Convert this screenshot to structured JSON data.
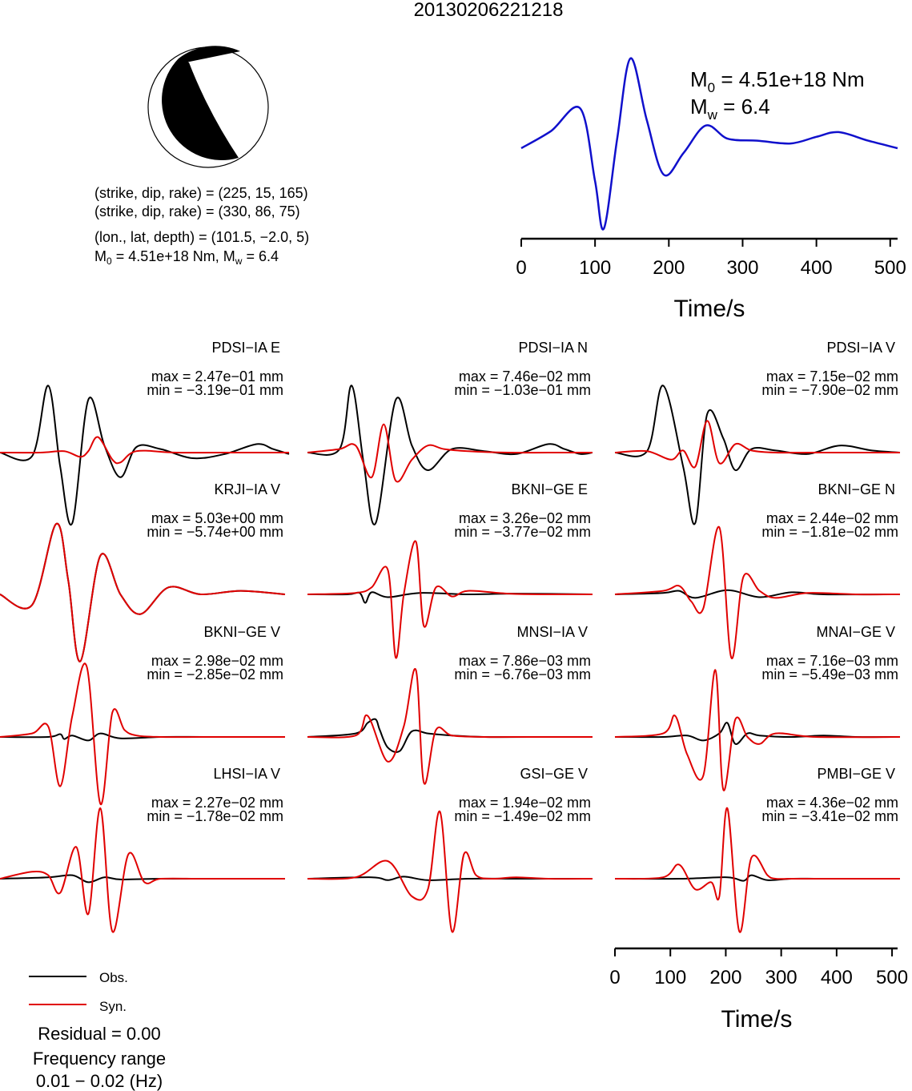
{
  "title": "20130206221218",
  "mechanism": {
    "line1": "(strike, dip, rake) = (225, 15, 165)",
    "line2": "(strike, dip, rake) = (330, 86, 75)",
    "line3": "(lon., lat, depth) = (101.5, −2.0, 5)",
    "m0_prefix": "M",
    "m0_sub": "0",
    "m0_value": " = 4.51e+18 Nm, M",
    "mw_sub": "w",
    "mw_value": " = 6.4"
  },
  "stf": {
    "m0_label": "M",
    "m0_sub": "0",
    "m0_value": " = 4.51e+18 Nm",
    "mw_label": "M",
    "mw_sub": "w",
    "mw_value": " = 6.4",
    "xlabel": "Time/s"
  },
  "legend": {
    "obs": "Obs.",
    "syn": "Syn.",
    "residual": "Residual = 0.00",
    "freq_title": "Frequency range",
    "freq_value": "0.01 − 0.02 (Hz)"
  },
  "colors": {
    "observed": "#000000",
    "synthetic": "#e00000",
    "stf": "#1010cc",
    "beachball_fill": "#000000"
  },
  "chart_data": [
    {
      "type": "line",
      "name": "source-time-function",
      "xlabel": "Time/s",
      "xlim": [
        0,
        510
      ],
      "x_ticks": [
        0,
        100,
        200,
        300,
        400,
        500
      ],
      "x": [
        0,
        40,
        80,
        100,
        112,
        130,
        148,
        170,
        193,
        220,
        250,
        280,
        320,
        365,
        400,
        430,
        470,
        510
      ],
      "y": [
        0.0,
        0.18,
        0.42,
        -0.35,
        -0.85,
        0.1,
        0.95,
        0.3,
        -0.28,
        -0.05,
        0.24,
        0.1,
        0.08,
        0.05,
        0.12,
        0.17,
        0.08,
        0.0
      ],
      "ylim": [
        -0.9,
        1.0
      ],
      "grid": false
    },
    {
      "type": "line",
      "name": "waveform-fits",
      "xlabel": "Time/s",
      "xlim": [
        0,
        510
      ],
      "x_ticks": [
        0,
        100,
        200,
        300,
        400,
        500
      ],
      "panels": [
        {
          "station": "PDSI−IA E",
          "max": "max = 2.47e−01 mm",
          "min": "min = −3.19e−01 mm",
          "obs": {
            "x": [
              0,
              40,
              60,
              75,
              90,
              110,
              130,
              150,
              170,
              200,
              240,
              280,
              320,
              340,
              360
            ],
            "y": [
              0,
              -0.05,
              0.95,
              -0.2,
              -1.0,
              0.75,
              0.1,
              -0.35,
              0.08,
              0.05,
              -0.08,
              -0.02,
              0.12,
              0.05,
              -0.02
            ]
          },
          "syn": {
            "x": [
              0,
              50,
              80,
              100,
              110,
              122,
              140,
              150,
              170,
              220,
              300,
              360
            ],
            "y": [
              0,
              0.0,
              0.02,
              -0.06,
              0.02,
              0.22,
              -0.1,
              -0.14,
              0.02,
              0.0,
              0.0,
              0.0
            ]
          }
        },
        {
          "station": "PDSI−IA N",
          "max": "max = 7.46e−02 mm",
          "min": "min = −1.03e−01 mm",
          "obs": {
            "x": [
              0,
              40,
              55,
              70,
              85,
              110,
              130,
              150,
              180,
              220,
              260,
              300,
              320,
              340,
              355
            ],
            "y": [
              0,
              0.05,
              0.95,
              -0.15,
              -1.0,
              0.75,
              0.1,
              -0.25,
              0.05,
              0.02,
              -0.02,
              0.12,
              0.05,
              -0.02,
              0
            ]
          },
          "syn": {
            "x": [
              0,
              40,
              60,
              80,
              95,
              110,
              130,
              150,
              170,
              200,
              250,
              300,
              355
            ],
            "y": [
              0,
              0.05,
              0.1,
              -0.35,
              0.4,
              -0.4,
              -0.1,
              0.1,
              0.05,
              0.02,
              0.0,
              0.0,
              0.0
            ]
          }
        },
        {
          "station": "PDSI−IA V",
          "max": "max = 7.15e−02 mm",
          "min": "min = −7.90e−02 mm",
          "obs": {
            "x": [
              0,
              40,
              60,
              85,
              100,
              115,
              135,
              150,
              170,
              200,
              240,
              280,
              320,
              355
            ],
            "y": [
              0,
              0.02,
              0.95,
              -0.2,
              -1.0,
              0.55,
              0.2,
              -0.25,
              0.05,
              0.03,
              -0.02,
              0.1,
              0.03,
              0
            ]
          },
          "syn": {
            "x": [
              0,
              40,
              70,
              85,
              100,
              115,
              130,
              150,
              170,
              200,
              260,
              355
            ],
            "y": [
              0,
              0.02,
              -0.1,
              0.03,
              -0.2,
              0.45,
              -0.15,
              0.12,
              0.03,
              0.0,
              0.0,
              0
            ]
          }
        },
        {
          "station": "KRJI−IA V",
          "max": "max = 5.03e+00 mm",
          "min": "min = −5.74e+00 mm",
          "obs": {
            "x": [
              0,
              40,
              70,
              85,
              100,
              125,
              150,
              175,
              210,
              250,
              300,
              355
            ],
            "y": [
              0,
              -0.15,
              1.0,
              0.2,
              -0.95,
              0.55,
              0.0,
              -0.28,
              0.1,
              0.0,
              0.05,
              0
            ]
          },
          "syn": {
            "x": [
              0,
              40,
              70,
              85,
              100,
              125,
              150,
              175,
              210,
              250,
              300,
              355
            ],
            "y": [
              0,
              -0.15,
              1.0,
              0.2,
              -0.95,
              0.55,
              0.0,
              -0.28,
              0.1,
              0.0,
              0.05,
              0
            ]
          }
        },
        {
          "station": "BKNI−GE E",
          "max": "max = 3.26e−02 mm",
          "min": "min = −3.77e−02 mm",
          "obs": {
            "x": [
              0,
              50,
              65,
              72,
              80,
              100,
              140,
              200,
              260,
              355
            ],
            "y": [
              0,
              0.0,
              0.02,
              -0.12,
              0.03,
              -0.04,
              0.02,
              0.0,
              0.01,
              0
            ]
          },
          "syn": {
            "x": [
              0,
              60,
              80,
              100,
              110,
              120,
              135,
              145,
              160,
              180,
              200,
              250,
              300,
              355
            ],
            "y": [
              0,
              0.02,
              0.1,
              0.35,
              -0.9,
              0.0,
              0.75,
              -0.45,
              0.1,
              -0.03,
              0.05,
              0.01,
              0.0,
              0
            ]
          },
          "syn_scale": 1.0
        },
        {
          "station": "BKNI−GE N",
          "max": "max = 2.44e−02 mm",
          "min": "min = −1.81e−02 mm",
          "obs": {
            "x": [
              0,
              60,
              80,
              100,
              140,
              180,
              220,
              260,
              355
            ],
            "y": [
              0,
              0.02,
              0.05,
              -0.05,
              0.06,
              -0.04,
              0.03,
              0.0,
              0
            ]
          },
          "syn": {
            "x": [
              0,
              60,
              80,
              95,
              110,
              130,
              145,
              160,
              180,
              200,
              240,
              300,
              355
            ],
            "y": [
              0,
              0.05,
              0.12,
              -0.1,
              -0.2,
              0.95,
              -0.9,
              0.25,
              0.05,
              -0.05,
              0.02,
              0.0,
              0
            ]
          }
        },
        {
          "station": "BKNI−GE V",
          "max": "max = 2.98e−02 mm",
          "min": "min = −2.85e−02 mm",
          "obs": {
            "x": [
              0,
              60,
              75,
              80,
              90,
              110,
              125,
              150,
              200,
              260,
              355
            ],
            "y": [
              0,
              0.0,
              0.04,
              -0.03,
              0.02,
              -0.05,
              0.05,
              -0.02,
              0.0,
              0.0,
              0
            ]
          },
          "syn": {
            "x": [
              0,
              40,
              60,
              75,
              90,
              108,
              125,
              140,
              155,
              170,
              200,
              250,
              300,
              355
            ],
            "y": [
              0,
              0.05,
              0.15,
              -0.7,
              0.3,
              1.0,
              -0.95,
              0.35,
              0.1,
              0.02,
              0.0,
              0.0,
              0.0,
              0
            ]
          }
        },
        {
          "station": "MNSI−IA V",
          "max": "max = 7.86e−03 mm",
          "min": "min = −6.76e−03 mm",
          "obs": {
            "x": [
              0,
              60,
              75,
              85,
              90,
              100,
              115,
              130,
              150,
              180,
              220,
              300,
              355
            ],
            "y": [
              0,
              0.05,
              0.2,
              0.25,
              0.1,
              -0.15,
              -0.2,
              0.08,
              0.05,
              0.02,
              0.0,
              0.0,
              0
            ]
          },
          "syn": {
            "x": [
              0,
              60,
              75,
              100,
              120,
              135,
              145,
              160,
              180,
              220,
              260,
              355
            ],
            "y": [
              0,
              0.02,
              0.3,
              -0.35,
              0.15,
              0.95,
              -0.65,
              0.1,
              0.02,
              0.0,
              0.0,
              0
            ]
          }
        },
        {
          "station": "MNAI−GE V",
          "max": "max = 7.16e−03 mm",
          "min": "min = −5.49e−03 mm",
          "obs": {
            "x": [
              0,
              60,
              90,
              110,
              130,
              140,
              150,
              165,
              180,
              220,
              260,
              300,
              355
            ],
            "y": [
              0,
              0.0,
              0.02,
              -0.05,
              0.05,
              0.2,
              -0.1,
              0.05,
              0.02,
              0.0,
              0.02,
              0.0,
              0
            ]
          },
          "syn": {
            "x": [
              0,
              60,
              75,
              90,
              110,
              125,
              135,
              150,
              165,
              180,
              200,
              250,
              355
            ],
            "y": [
              0,
              0.05,
              0.3,
              -0.25,
              -0.55,
              0.95,
              -0.75,
              0.25,
              0.0,
              -0.1,
              0.05,
              0.0,
              0
            ]
          }
        },
        {
          "station": "LHSI−IA V",
          "max": "max = 2.27e−02 mm",
          "min": "min = −1.78e−02 mm",
          "obs": {
            "x": [
              0,
              60,
              90,
              110,
              130,
              150,
              200,
              260,
              355
            ],
            "y": [
              0,
              0.02,
              0.05,
              -0.05,
              0.02,
              -0.01,
              0.0,
              0.0,
              0
            ]
          },
          "syn": {
            "x": [
              0,
              40,
              60,
              75,
              95,
              110,
              125,
              140,
              160,
              180,
              200,
              250,
              300,
              355
            ],
            "y": [
              0,
              0.1,
              0.05,
              -0.2,
              0.45,
              -0.5,
              1.0,
              -0.75,
              0.35,
              -0.05,
              0.0,
              0.0,
              0.0,
              0
            ]
          }
        },
        {
          "station": "GSI−GE V",
          "max": "max = 1.94e−02 mm",
          "min": "min = −1.49e−02 mm",
          "obs": {
            "x": [
              0,
              80,
              100,
              120,
              150,
              200,
              260,
              355
            ],
            "y": [
              0,
              0.02,
              -0.02,
              0.03,
              -0.02,
              0.0,
              0.0,
              0
            ]
          },
          "syn": {
            "x": [
              0,
              60,
              100,
              130,
              150,
              165,
              180,
              195,
              210,
              230,
              260,
              300,
              355
            ],
            "y": [
              0,
              0.02,
              0.25,
              -0.25,
              -0.15,
              0.95,
              -0.75,
              0.35,
              0.05,
              0.0,
              0.02,
              0.0,
              0
            ]
          }
        },
        {
          "station": "PMBI−GE V",
          "max": "max = 4.36e−02 mm",
          "min": "min = −3.41e−02 mm",
          "obs": {
            "x": [
              0,
              80,
              140,
              160,
              170,
              190,
              220,
              260,
              355
            ],
            "y": [
              0,
              0.0,
              0.02,
              -0.03,
              0.05,
              -0.02,
              0.0,
              0.0,
              0
            ]
          },
          "syn": {
            "x": [
              0,
              60,
              80,
              100,
              120,
              130,
              140,
              155,
              170,
              190,
              200,
              220,
              260,
              355
            ],
            "y": [
              0,
              0.02,
              0.2,
              -0.15,
              -0.05,
              -0.25,
              1.0,
              -0.75,
              0.3,
              0.05,
              0.0,
              0.0,
              0.0,
              0
            ]
          }
        }
      ]
    }
  ]
}
